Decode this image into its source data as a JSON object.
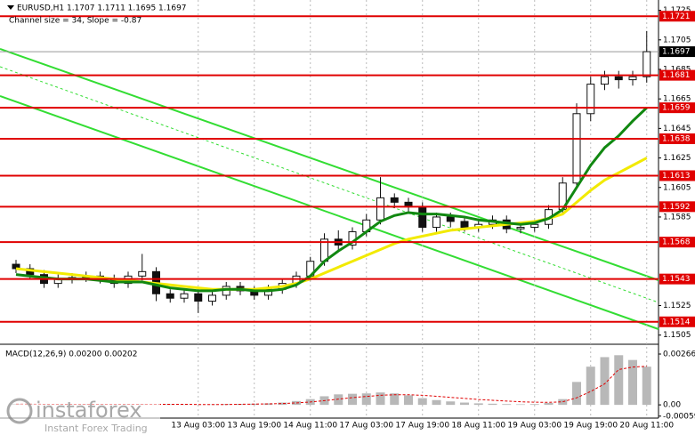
{
  "chart_data": {
    "type": "candlestick",
    "title": "EURUSD,H1  1.1707 1.1711 1.1695 1.1697",
    "subtitle": "Channel size = 34, Slope = -0.87",
    "categories": [
      null,
      null,
      null,
      null,
      null,
      null,
      null,
      null,
      null,
      null,
      null,
      null,
      null,
      "13 Aug 03:00",
      null,
      null,
      null,
      "13 Aug 19:00",
      null,
      null,
      null,
      "14 Aug 11:00",
      null,
      null,
      null,
      "17 Aug 03:00",
      null,
      null,
      null,
      "17 Aug 19:00",
      null,
      null,
      null,
      "18 Aug 11:00",
      null,
      null,
      null,
      "19 Aug 03:00",
      null,
      null,
      null,
      "19 Aug 19:00",
      null,
      null,
      null,
      "20 Aug 11:00"
    ],
    "open": [
      1.1553,
      1.155,
      1.1546,
      1.154,
      1.1543,
      1.1544,
      1.1545,
      1.1543,
      1.154,
      1.1545,
      1.1548,
      1.1533,
      1.153,
      1.1533,
      1.1528,
      1.1532,
      1.1538,
      1.1535,
      1.1532,
      1.1536,
      1.154,
      1.1545,
      1.1555,
      1.157,
      1.1566,
      1.1575,
      1.1583,
      1.1598,
      1.1595,
      1.1592,
      1.1578,
      1.1585,
      1.1582,
      1.1578,
      1.158,
      1.1583,
      1.1577,
      1.1578,
      1.158,
      1.159,
      1.1608,
      1.1655,
      1.1675,
      1.168,
      1.1678,
      1.168
    ],
    "high": [
      1.1556,
      1.1553,
      1.1549,
      1.1546,
      1.1547,
      1.1548,
      1.1548,
      1.1546,
      1.1548,
      1.156,
      1.1551,
      1.1536,
      1.1536,
      1.1536,
      1.1535,
      1.1541,
      1.1541,
      1.1538,
      1.1539,
      1.1543,
      1.1548,
      1.1558,
      1.1574,
      1.1576,
      1.1578,
      1.1587,
      1.1612,
      1.1601,
      1.1598,
      1.1595,
      1.1588,
      1.1588,
      1.1585,
      1.1583,
      1.1586,
      1.1586,
      1.1581,
      1.1583,
      1.1593,
      1.1612,
      1.1662,
      1.168,
      1.1684,
      1.1684,
      1.1684,
      1.1711
    ],
    "low": [
      1.1547,
      1.1543,
      1.1537,
      1.1537,
      1.154,
      1.1541,
      1.154,
      1.1537,
      1.1537,
      1.1542,
      1.1528,
      1.1527,
      1.1527,
      1.152,
      1.1525,
      1.1529,
      1.1532,
      1.1529,
      1.1529,
      1.1533,
      1.1537,
      1.1542,
      1.1552,
      1.1562,
      1.1563,
      1.1572,
      1.158,
      1.1591,
      1.1588,
      1.1575,
      1.1575,
      1.1578,
      1.1575,
      1.1575,
      1.1577,
      1.1574,
      1.1574,
      1.1575,
      1.1577,
      1.1587,
      1.1604,
      1.165,
      1.1671,
      1.1672,
      1.1674,
      1.1676
    ],
    "close": [
      1.155,
      1.1546,
      1.154,
      1.1543,
      1.1544,
      1.1545,
      1.1543,
      1.154,
      1.1545,
      1.1548,
      1.1533,
      1.153,
      1.1533,
      1.1528,
      1.1532,
      1.1538,
      1.1535,
      1.1532,
      1.1536,
      1.154,
      1.1545,
      1.1555,
      1.157,
      1.1566,
      1.1575,
      1.1583,
      1.1598,
      1.1595,
      1.1592,
      1.1578,
      1.1585,
      1.1582,
      1.1578,
      1.158,
      1.1583,
      1.1577,
      1.1578,
      1.158,
      1.159,
      1.1608,
      1.1655,
      1.1675,
      1.168,
      1.1678,
      1.168,
      1.1697
    ],
    "candle_color": "#111111",
    "ma_fast": {
      "color": "#118811",
      "values": [
        1.1546,
        1.1545,
        1.1544,
        1.1543,
        1.1543,
        1.1543,
        1.1542,
        1.1541,
        1.1541,
        1.1541,
        1.1539,
        1.1537,
        1.1536,
        1.1535,
        1.1535,
        1.1536,
        1.1536,
        1.1535,
        1.1535,
        1.1536,
        1.1539,
        1.1545,
        1.1555,
        1.1562,
        1.1568,
        1.1575,
        1.1582,
        1.1586,
        1.1588,
        1.1587,
        1.1587,
        1.1586,
        1.1585,
        1.1583,
        1.1582,
        1.1581,
        1.158,
        1.1581,
        1.1584,
        1.159,
        1.1605,
        1.162,
        1.1632,
        1.164,
        1.165,
        1.1659
      ]
    },
    "ma_slow": {
      "color": "#f2ea00",
      "values": [
        1.155,
        1.1549,
        1.1548,
        1.1547,
        1.1546,
        1.1545,
        1.1544,
        1.1543,
        1.1542,
        1.1541,
        1.154,
        1.1539,
        1.1538,
        1.1537,
        1.1536,
        1.1536,
        1.1536,
        1.1536,
        1.1537,
        1.1538,
        1.154,
        1.1543,
        1.1547,
        1.1551,
        1.1555,
        1.1559,
        1.1563,
        1.1567,
        1.157,
        1.1572,
        1.1574,
        1.1576,
        1.1577,
        1.1578,
        1.1579,
        1.158,
        1.1581,
        1.1582,
        1.1584,
        1.1587,
        1.1595,
        1.1603,
        1.161,
        1.1615,
        1.162,
        1.1625
      ]
    },
    "ylim": [
      1.15,
      1.1732
    ],
    "yticks": [
      1.1725,
      1.1705,
      1.1685,
      1.1665,
      1.1645,
      1.1625,
      1.1605,
      1.1585,
      1.1525,
      1.1505
    ],
    "levels": {
      "color": "#e00000",
      "values": [
        1.1721,
        1.1681,
        1.1659,
        1.1638,
        1.1613,
        1.1592,
        1.1568,
        1.1543,
        1.1514
      ]
    },
    "last_price": 1.1697,
    "macd": {
      "label": "MACD(12,26,9) 0.00200 0.00202",
      "ylim": [
        -0.0006,
        0.0028
      ],
      "yticks": [
        0.00266,
        {
          "value": 0,
          "label": "0.00"
        },
        -0.00059
      ],
      "histogram": [
        5e-05,
        3e-05,
        2e-05,
        2e-05,
        3e-05,
        4e-05,
        3e-05,
        2e-05,
        3e-05,
        4e-05,
        2e-05,
        3e-05,
        2e-05,
        1e-05,
        2e-05,
        4e-05,
        5e-05,
        6e-05,
        8e-05,
        0.00012,
        0.0002,
        0.0003,
        0.00045,
        0.00055,
        0.00058,
        0.0006,
        0.00065,
        0.0006,
        0.0005,
        0.00035,
        0.00025,
        0.00018,
        0.00012,
        8e-05,
        6e-05,
        4e-05,
        3e-05,
        4e-05,
        0.0001,
        0.0003,
        0.0012,
        0.002,
        0.0025,
        0.0026,
        0.00235,
        0.002
      ],
      "signal": [
        4e-05,
        4e-05,
        3e-05,
        3e-05,
        3e-05,
        3e-05,
        3e-05,
        3e-05,
        3e-05,
        3e-05,
        3e-05,
        3e-05,
        3e-05,
        2e-05,
        2e-05,
        2e-05,
        3e-05,
        4e-05,
        5e-05,
        7e-05,
        0.0001,
        0.00015,
        0.00022,
        0.0003,
        0.00038,
        0.00044,
        0.0005,
        0.00053,
        0.00053,
        0.0005,
        0.00045,
        0.00039,
        0.00034,
        0.00028,
        0.00024,
        0.0002,
        0.00016,
        0.00014,
        0.00013,
        0.00016,
        0.00037,
        0.0007,
        0.0011,
        0.00185,
        0.00198,
        0.00202
      ],
      "hist_color": "#b8b8b8",
      "signal_color": "#e00000"
    },
    "watermark": {
      "brand": "instaforex",
      "tagline": "Instant Forex Trading"
    }
  }
}
